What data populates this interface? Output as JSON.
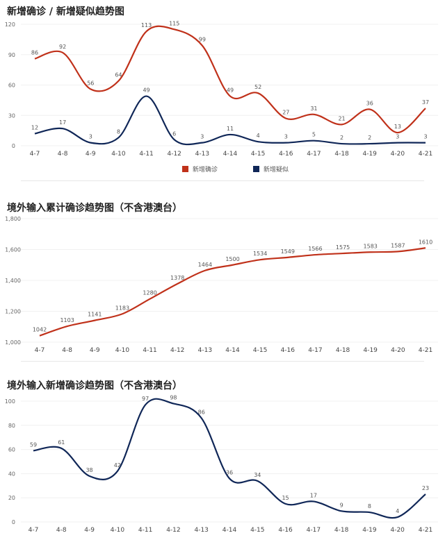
{
  "chart_data": [
    {
      "type": "line",
      "title": "新增确诊 / 新增疑似趋势图",
      "categories": [
        "4-7",
        "4-8",
        "4-9",
        "4-10",
        "4-11",
        "4-12",
        "4-13",
        "4-14",
        "4-15",
        "4-16",
        "4-17",
        "4-18",
        "4-19",
        "4-20",
        "4-21"
      ],
      "ylim": [
        0,
        120
      ],
      "yticks": [
        "0",
        "30",
        "60",
        "90",
        "120"
      ],
      "ytick_values": [
        0,
        30,
        60,
        90,
        120
      ],
      "grid": true,
      "legend": "bottom",
      "series": [
        {
          "name": "新增确诊",
          "color": "#c0311a",
          "values": [
            86,
            92,
            56,
            64,
            113,
            115,
            99,
            49,
            52,
            27,
            31,
            21,
            36,
            13,
            37
          ]
        },
        {
          "name": "新增疑似",
          "color": "#0f2657",
          "values": [
            12,
            17,
            3,
            8,
            49,
            6,
            3,
            11,
            4,
            3,
            5,
            2,
            2,
            3,
            3
          ]
        }
      ]
    },
    {
      "type": "line",
      "title": "境外输入累计确诊趋势图（不含港澳台）",
      "categories": [
        "4-7",
        "4-8",
        "4-9",
        "4-10",
        "4-11",
        "4-12",
        "4-13",
        "4-14",
        "4-15",
        "4-16",
        "4-17",
        "4-18",
        "4-19",
        "4-20",
        "4-21"
      ],
      "ylim": [
        1000,
        1800
      ],
      "yticks": [
        "1,000",
        "1,200",
        "1,400",
        "1,600",
        "1,800"
      ],
      "ytick_values": [
        1000,
        1200,
        1400,
        1600,
        1800
      ],
      "grid": true,
      "series": [
        {
          "color": "#c0311a",
          "values": [
            1042,
            1103,
            1141,
            1183,
            1280,
            1378,
            1464,
            1500,
            1534,
            1549,
            1566,
            1575,
            1583,
            1587,
            1610
          ]
        }
      ]
    },
    {
      "type": "line",
      "title": "境外输入新增确诊趋势图（不含港澳台）",
      "categories": [
        "4-7",
        "4-8",
        "4-9",
        "4-10",
        "4-11",
        "4-12",
        "4-13",
        "4-14",
        "4-15",
        "4-16",
        "4-17",
        "4-18",
        "4-19",
        "4-20",
        "4-21"
      ],
      "ylim": [
        0,
        100
      ],
      "yticks": [
        "0",
        "20",
        "40",
        "60",
        "80",
        "100"
      ],
      "ytick_values": [
        0,
        20,
        40,
        60,
        80,
        100
      ],
      "grid": true,
      "series": [
        {
          "color": "#0f2657",
          "values": [
            59,
            61,
            38,
            42,
            97,
            98,
            86,
            36,
            34,
            15,
            17,
            9,
            8,
            4,
            23
          ]
        }
      ]
    }
  ]
}
